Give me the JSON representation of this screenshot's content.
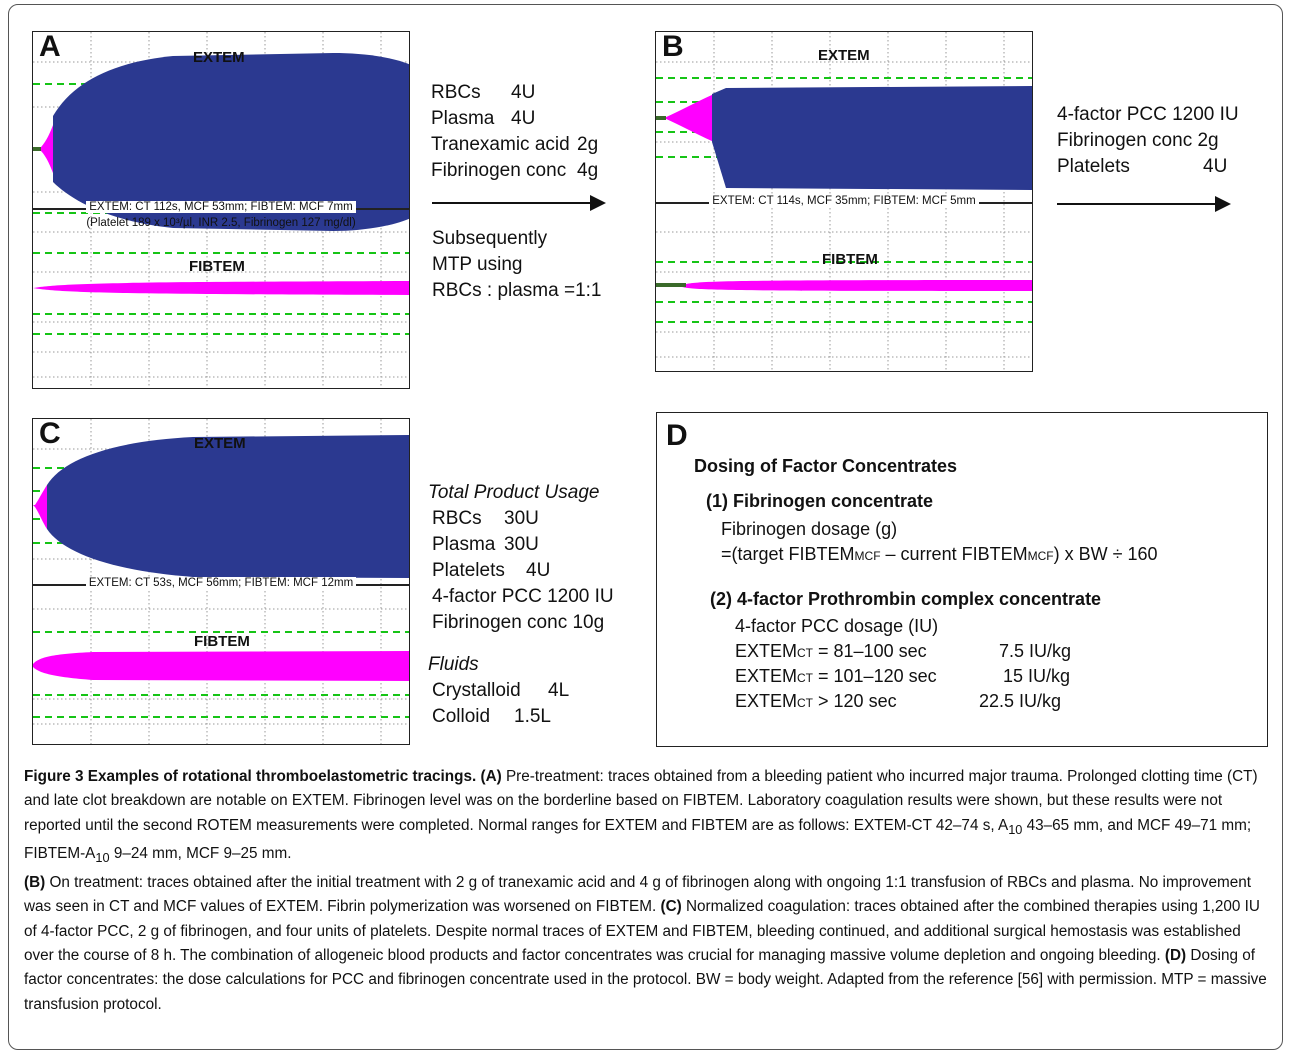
{
  "colors": {
    "extem": "#2b3990",
    "pink": "#ff00ff",
    "grid": "#16c416"
  },
  "panelA": {
    "label": "A",
    "extem_title": "EXTEM",
    "fibtem_title": "FIBTEM",
    "caption": "EXTEM: CT 112s, MCF 53mm; FIBTEM: MCF 7mm",
    "subcaption": "(Platelet 189 x 10³/µl, INR 2.5, Fibrinogen 127 mg/dl)"
  },
  "treatmentAB": {
    "items": [
      {
        "name": "RBCs",
        "amount": "4U"
      },
      {
        "name": "Plasma",
        "amount": "4U"
      },
      {
        "name": "Tranexamic acid",
        "amount": "2g"
      },
      {
        "name": "Fibrinogen conc",
        "amount": "4g"
      }
    ],
    "subsequent": [
      "Subsequently",
      "MTP using",
      "RBCs : plasma =1:1"
    ]
  },
  "panelB": {
    "label": "B",
    "extem_title": "EXTEM",
    "fibtem_title": "FIBTEM",
    "caption": "EXTEM: CT 114s, MCF 35mm; FIBTEM: MCF 5mm"
  },
  "treatmentBC": {
    "items": [
      {
        "name": "4-factor PCC 1200 IU",
        "amount": ""
      },
      {
        "name": "Fibrinogen conc 2g",
        "amount": ""
      },
      {
        "name": "Platelets",
        "amount": "4U"
      }
    ]
  },
  "panelC": {
    "label": "C",
    "extem_title": "EXTEM",
    "fibtem_title": "FIBTEM",
    "caption": "EXTEM: CT 53s, MCF 56mm; FIBTEM: MCF 12mm"
  },
  "usage": {
    "heading": "Total Product Usage",
    "items": [
      {
        "name": "RBCs",
        "amount": "30U"
      },
      {
        "name": "Plasma",
        "amount": "30U"
      },
      {
        "name": "Platelets",
        "amount": "4U"
      },
      {
        "name": "4-factor PCC 1200 IU",
        "amount": ""
      },
      {
        "name": "Fibrinogen conc 10g",
        "amount": ""
      }
    ],
    "fluids_heading": "Fluids",
    "fluids": [
      {
        "name": "Crystalloid",
        "amount": "4L"
      },
      {
        "name": "Colloid",
        "amount": "1.5L"
      }
    ]
  },
  "panelD": {
    "label": "D",
    "title": "Dosing of Factor Concentrates",
    "s1_title": "(1) Fibrinogen concentrate",
    "s1_line1": "Fibrinogen dosage (g)",
    "s1_formula_a": "=(target FIBTEM",
    "s1_sub1": "MCF",
    "s1_formula_b": " – current FIBTEM",
    "s1_sub2": "MCF",
    "s1_formula_c": ") x BW ÷ 160",
    "s2_title": "(2) 4-factor Prothrombin complex concentrate",
    "s2_line1": "4-factor PCC dosage (IU)",
    "rows": [
      {
        "pre": "EXTEM",
        "sub": "CT",
        "cond": " = 81–100 sec",
        "dose": "7.5 IU/kg"
      },
      {
        "pre": "EXTEM",
        "sub": "CT",
        "cond": " = 101–120 sec",
        "dose": "15 IU/kg"
      },
      {
        "pre": "EXTEM",
        "sub": "CT",
        "cond": " > 120 sec",
        "dose": "22.5 IU/kg"
      }
    ]
  },
  "caption": {
    "title": "Figure 3 Examples of rotational thromboelastometric tracings.",
    "A_tag": "(A)",
    "A_text": " Pre-treatment: traces obtained from a bleeding patient who incurred major trauma. Prolonged clotting time (CT) and late clot breakdown are notable on EXTEM. Fibrinogen level was on the borderline based on FIBTEM. Laboratory coagulation results were shown, but these results were not reported until the second ROTEM measurements were completed. Normal ranges for EXTEM and FIBTEM are as follows: EXTEM-CT 42–74 s, A",
    "A_sub1": "10",
    "A_text2": " 43–65 mm, and MCF 49–71 mm; FIBTEM-A",
    "A_sub2": "10",
    "A_text3": " 9–24 mm, MCF 9–25 mm.",
    "B_tag": "(B)",
    "B_text": " On treatment: traces obtained after the initial treatment with 2 g of tranexamic acid and 4 g of fibrinogen along with ongoing 1:1 transfusion of RBCs and plasma. No improvement was seen in CT and MCF values of EXTEM. Fibrin polymerization was worsened on FIBTEM.",
    "C_tag": "(C)",
    "C_text": " Normalized coagulation: traces obtained after the combined therapies using 1,200 IU of 4-factor PCC, 2 g of fibrinogen, and four units of platelets. Despite normal traces of EXTEM and FIBTEM, bleeding continued, and additional surgical hemostasis was established over the course of 8 h. The combination of allogeneic blood products and factor concentrates was crucial for managing massive volume depletion and ongoing bleeding.",
    "D_tag": "(D)",
    "D_text": " Dosing of factor concentrates: the dose calculations for PCC and fibrinogen concentrate used in the protocol. BW = body weight. Adapted from the reference [56] with permission. MTP = massive transfusion protocol."
  }
}
